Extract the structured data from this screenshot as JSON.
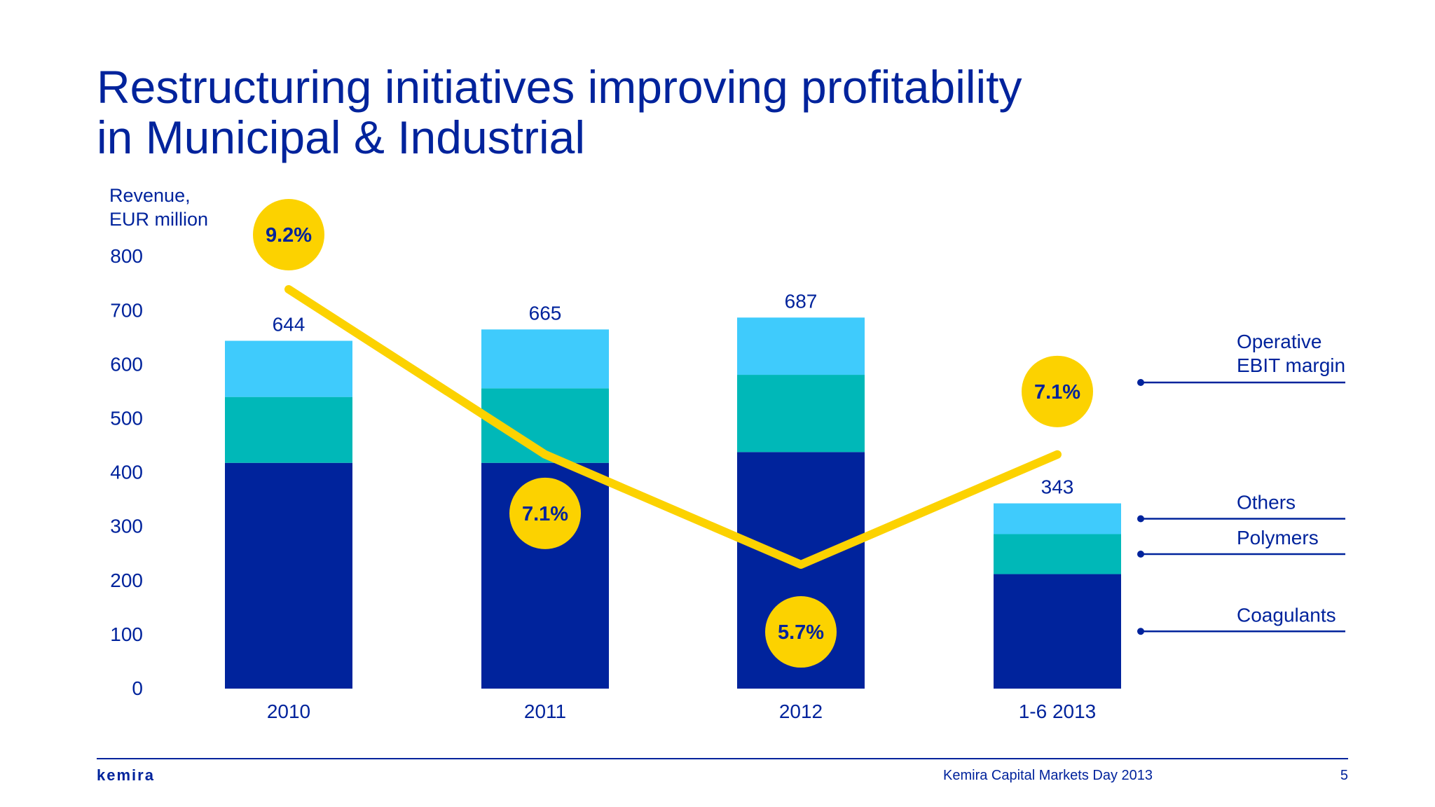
{
  "slide": {
    "title_line1": "Restructuring initiatives improving profitability",
    "title_line2": "in Municipal & Industrial",
    "logo_text": "kemira",
    "footer": "Kemira Capital Markets Day 2013",
    "page_number": "5"
  },
  "chart_data": {
    "type": "bar",
    "stacked": true,
    "ylabel_line1": "Revenue,",
    "ylabel_line2": "EUR million",
    "ylim": [
      0,
      800
    ],
    "yticks": [
      0,
      100,
      200,
      300,
      400,
      500,
      600,
      700,
      800
    ],
    "categories": [
      "2010",
      "2011",
      "2012",
      "1-6 2013"
    ],
    "totals": [
      644,
      665,
      687,
      343
    ],
    "series": [
      {
        "name": "Coagulants",
        "color": "#00239c",
        "values": [
          418,
          418,
          438,
          212
        ]
      },
      {
        "name": "Polymers",
        "color": "#00b8b8",
        "values": [
          122,
          138,
          143,
          74
        ]
      },
      {
        "name": "Others",
        "color": "#3fcbfc",
        "values": [
          104,
          109,
          106,
          57
        ]
      }
    ],
    "line_series": {
      "name_line1": "Operative",
      "name_line2": "EBIT margin",
      "color": "#fcd200",
      "values": [
        9.2,
        7.1,
        5.7,
        7.1
      ],
      "labels": [
        "9.2%",
        "7.1%",
        "5.7%",
        "7.1%"
      ]
    },
    "legend_position": "right"
  }
}
